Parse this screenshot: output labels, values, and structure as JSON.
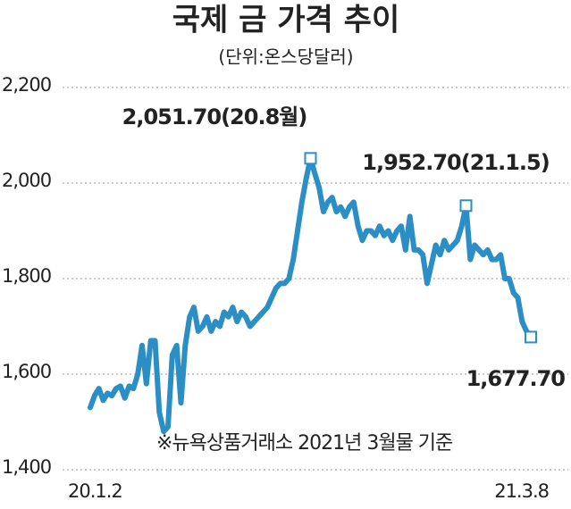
{
  "chart_data": {
    "type": "line",
    "title": "국제 금 가격 추이",
    "subtitle": "(단위:온스당달러)",
    "footnote": "※뉴욕상품거래소 2021년 3월물 기준",
    "categories": [
      "20.1.2",
      null,
      null,
      null,
      null,
      null,
      null,
      null,
      null,
      null,
      null,
      null,
      null,
      null,
      null,
      null,
      null,
      null,
      null,
      null,
      null,
      null,
      null,
      null,
      null,
      null,
      null,
      null,
      null,
      null,
      null,
      null,
      null,
      null,
      null,
      null,
      null,
      null,
      null,
      null,
      null,
      null,
      null,
      null,
      null,
      null,
      null,
      null,
      null,
      null,
      null,
      null,
      null,
      null,
      null,
      null,
      null,
      null,
      null,
      null,
      null,
      null,
      null,
      null,
      null,
      null,
      null,
      null,
      null,
      null,
      null,
      null,
      null,
      null,
      null,
      null,
      null,
      null,
      null,
      null,
      null,
      null,
      null,
      null,
      null,
      null,
      null,
      null,
      null,
      null,
      null,
      null,
      null,
      null,
      null,
      null,
      null,
      null,
      null,
      null,
      null,
      null,
      "21.3.8"
    ],
    "series": [
      {
        "name": "금 가격",
        "color": "#2b8fc6",
        "values": [
          1530,
          1555,
          1570,
          1545,
          1560,
          1555,
          1570,
          1575,
          1550,
          1575,
          1570,
          1600,
          1660,
          1580,
          1670,
          1670,
          1520,
          1480,
          1490,
          1640,
          1660,
          1540,
          1660,
          1720,
          1740,
          1690,
          1700,
          1720,
          1690,
          1710,
          1700,
          1730,
          1720,
          1740,
          1710,
          1730,
          1720,
          1700,
          1710,
          1720,
          1730,
          1740,
          1760,
          1780,
          1790,
          1790,
          1800,
          1840,
          1900,
          1960,
          2010,
          2051.7,
          2020,
          1990,
          1940,
          1960,
          1970,
          1940,
          1950,
          1930,
          1950,
          1960,
          1910,
          1880,
          1900,
          1900,
          1890,
          1910,
          1890,
          1900,
          1880,
          1900,
          1910,
          1860,
          1930,
          1860,
          1860,
          1850,
          1790,
          1830,
          1870,
          1850,
          1880,
          1860,
          1870,
          1880,
          1910,
          1952.7,
          1840,
          1870,
          1860,
          1850,
          1860,
          1840,
          1840,
          1850,
          1800,
          1800,
          1770,
          1760,
          1710,
          1690,
          1677.7
        ]
      }
    ],
    "annotations": [
      {
        "text": "2,051.70(20.8월)",
        "value": 2051.7
      },
      {
        "text": "1,952.70(21.1.5)",
        "value": 1952.7
      },
      {
        "text": "1,677.70",
        "value": 1677.7
      }
    ],
    "ylim": [
      1400,
      2200
    ],
    "yticks": [
      {
        "value": 1400,
        "label": "1,400"
      },
      {
        "value": 1600,
        "label": "1,600"
      },
      {
        "value": 1800,
        "label": "1,800"
      },
      {
        "value": 2000,
        "label": "2,000"
      },
      {
        "value": 2200,
        "label": "2,200"
      }
    ],
    "grid": true
  }
}
